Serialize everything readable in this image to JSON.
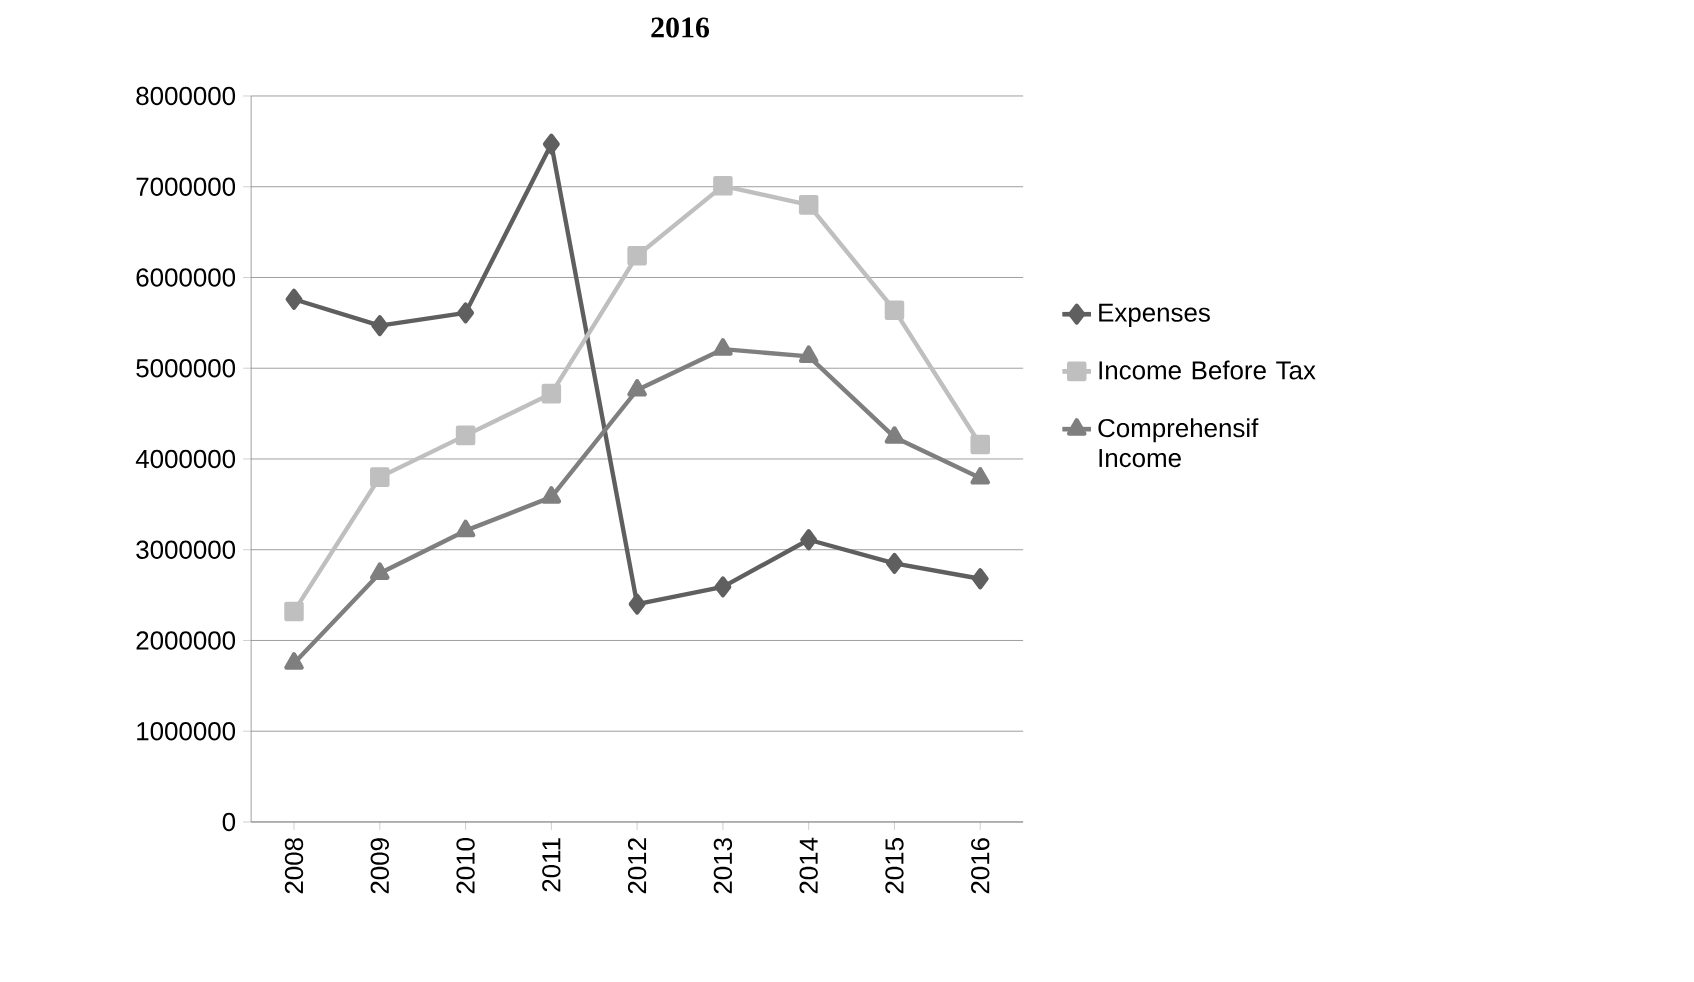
{
  "chart_data": {
    "type": "line",
    "title": "2016",
    "categories": [
      "2008",
      "2009",
      "2010",
      "2011",
      "2012",
      "2013",
      "2014",
      "2015",
      "2016"
    ],
    "series": [
      {
        "name": "Expenses",
        "color": "#5f5f5f",
        "marker": "diamond",
        "values": [
          5760000,
          5470000,
          5610000,
          7470000,
          2400000,
          2590000,
          3110000,
          2850000,
          2680000
        ]
      },
      {
        "name": "Income Before Tax",
        "color": "#bfbfbf",
        "marker": "square",
        "values": [
          2320000,
          3800000,
          4260000,
          4720000,
          6240000,
          7010000,
          6800000,
          5640000,
          4160000
        ]
      },
      {
        "name": "Comprehensif Income",
        "color": "#7f7f7f",
        "marker": "triangle",
        "values": [
          1750000,
          2740000,
          3210000,
          3580000,
          4760000,
          5210000,
          5130000,
          4240000,
          3790000
        ]
      }
    ],
    "ylim": [
      0,
      8000000
    ],
    "yticks": [
      0,
      1000000,
      2000000,
      3000000,
      4000000,
      5000000,
      6000000,
      7000000,
      8000000
    ],
    "grid": "y",
    "legend": "right",
    "line_style": "solid"
  }
}
